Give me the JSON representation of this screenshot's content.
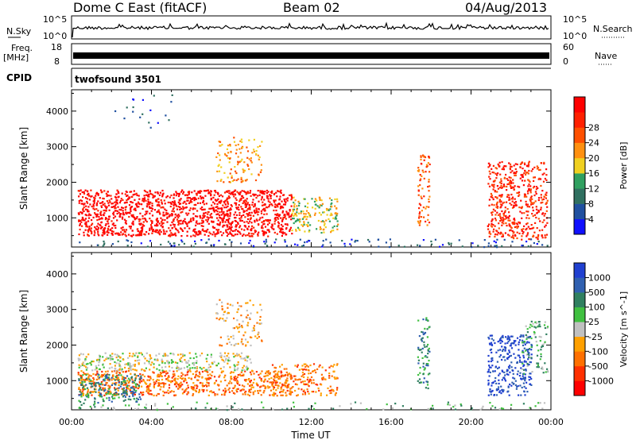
{
  "header": {
    "station": "Dome C East (fitACF)",
    "beam": "Beam 02",
    "date": "04/Aug/2013"
  },
  "top_panels": {
    "nsky_label": "N.Sky",
    "nsky_ticks": [
      "10^5",
      "10^0"
    ],
    "nsearch_label": "N.Search",
    "nsearch_ticks": [
      "10^5",
      "10^0"
    ],
    "freq_label": "Freq.",
    "freq_unit": "[MHz]",
    "freq_ticks": [
      "18",
      "8"
    ],
    "nave_label": "Nave",
    "nave_ticks": [
      "60",
      "0"
    ],
    "cpid_label": "CPID",
    "cpid_value": "twofsound 3501"
  },
  "chart_data": [
    {
      "type": "heatmap",
      "title": "",
      "xlabel": "Time UT",
      "ylabel": "Slant Range [km]",
      "xlim": [
        0,
        24
      ],
      "ylim": [
        180,
        4600
      ],
      "x_ticks": [
        "00:00",
        "04:00",
        "08:00",
        "12:00",
        "16:00",
        "20:00",
        "00:00"
      ],
      "y_ticks": [
        "1000",
        "2000",
        "3000",
        "4000"
      ],
      "colorbar": {
        "label": "Power [dB]",
        "ticks": [
          "4",
          "8",
          "12",
          "16",
          "20",
          "24",
          "28"
        ],
        "colors": [
          "#1010ff",
          "#2050a0",
          "#307060",
          "#30a060",
          "#f0d020",
          "#ff9010",
          "#ff5000",
          "#ff2000",
          "#ff0000"
        ]
      },
      "regions": [
        {
          "t": [
            0.3,
            11.0
          ],
          "r": [
            500,
            1800
          ],
          "level": 8,
          "density": 0.85
        },
        {
          "t": [
            11.0,
            13.3
          ],
          "r": [
            600,
            1600
          ],
          "level": 4,
          "density": 0.55
        },
        {
          "t": [
            7.2,
            9.5
          ],
          "r": [
            2000,
            3300
          ],
          "level": 5,
          "density": 0.3
        },
        {
          "t": [
            17.3,
            17.9
          ],
          "r": [
            800,
            2800
          ],
          "level": 6,
          "density": 0.5
        },
        {
          "t": [
            20.8,
            23.8
          ],
          "r": [
            400,
            2600
          ],
          "level": 7,
          "density": 0.6
        },
        {
          "t": [
            0.3,
            23.8
          ],
          "r": [
            200,
            420
          ],
          "level": 1,
          "density": 0.2
        },
        {
          "t": [
            2.0,
            5.0
          ],
          "r": [
            3500,
            4500
          ],
          "level": 1,
          "density": 0.05
        }
      ]
    },
    {
      "type": "heatmap",
      "title": "",
      "xlabel": "Time UT",
      "ylabel": "Slant Range [km]",
      "xlim": [
        0,
        24
      ],
      "ylim": [
        180,
        4600
      ],
      "x_ticks": [
        "00:00",
        "04:00",
        "08:00",
        "12:00",
        "16:00",
        "20:00",
        "00:00"
      ],
      "y_ticks": [
        "1000",
        "2000",
        "3000",
        "4000"
      ],
      "colorbar": {
        "label": "Velocity [m s^-1]",
        "ticks": [
          "1000",
          "500",
          "100",
          "25",
          "-25",
          "-100",
          "-500",
          "-1000"
        ],
        "colors": [
          "#2040d0",
          "#3060b0",
          "#308060",
          "#40c040",
          "#c0c0c0",
          "#ffa000",
          "#ff7000",
          "#ff3000",
          "#ff0000"
        ]
      },
      "regions": [
        {
          "t": [
            0.3,
            11.0
          ],
          "r": [
            600,
            1300
          ],
          "level": 6,
          "density": 0.75
        },
        {
          "t": [
            0.3,
            9.0
          ],
          "r": [
            1300,
            1800
          ],
          "level": 4,
          "density": 0.6
        },
        {
          "t": [
            0.3,
            3.5
          ],
          "r": [
            400,
            1200
          ],
          "level": 2,
          "density": 0.6
        },
        {
          "t": [
            10.0,
            13.3
          ],
          "r": [
            600,
            1500
          ],
          "level": 6,
          "density": 0.5
        },
        {
          "t": [
            7.2,
            9.5
          ],
          "r": [
            2000,
            3300
          ],
          "level": 5,
          "density": 0.3
        },
        {
          "t": [
            17.3,
            17.9
          ],
          "r": [
            800,
            2800
          ],
          "level": 2,
          "density": 0.5
        },
        {
          "t": [
            20.8,
            23.0
          ],
          "r": [
            600,
            2300
          ],
          "level": 0,
          "density": 0.6
        },
        {
          "t": [
            22.5,
            23.8
          ],
          "r": [
            1200,
            2700
          ],
          "level": 3,
          "density": 0.35
        },
        {
          "t": [
            0.3,
            23.8
          ],
          "r": [
            200,
            420
          ],
          "level": 3,
          "density": 0.15
        }
      ]
    }
  ]
}
